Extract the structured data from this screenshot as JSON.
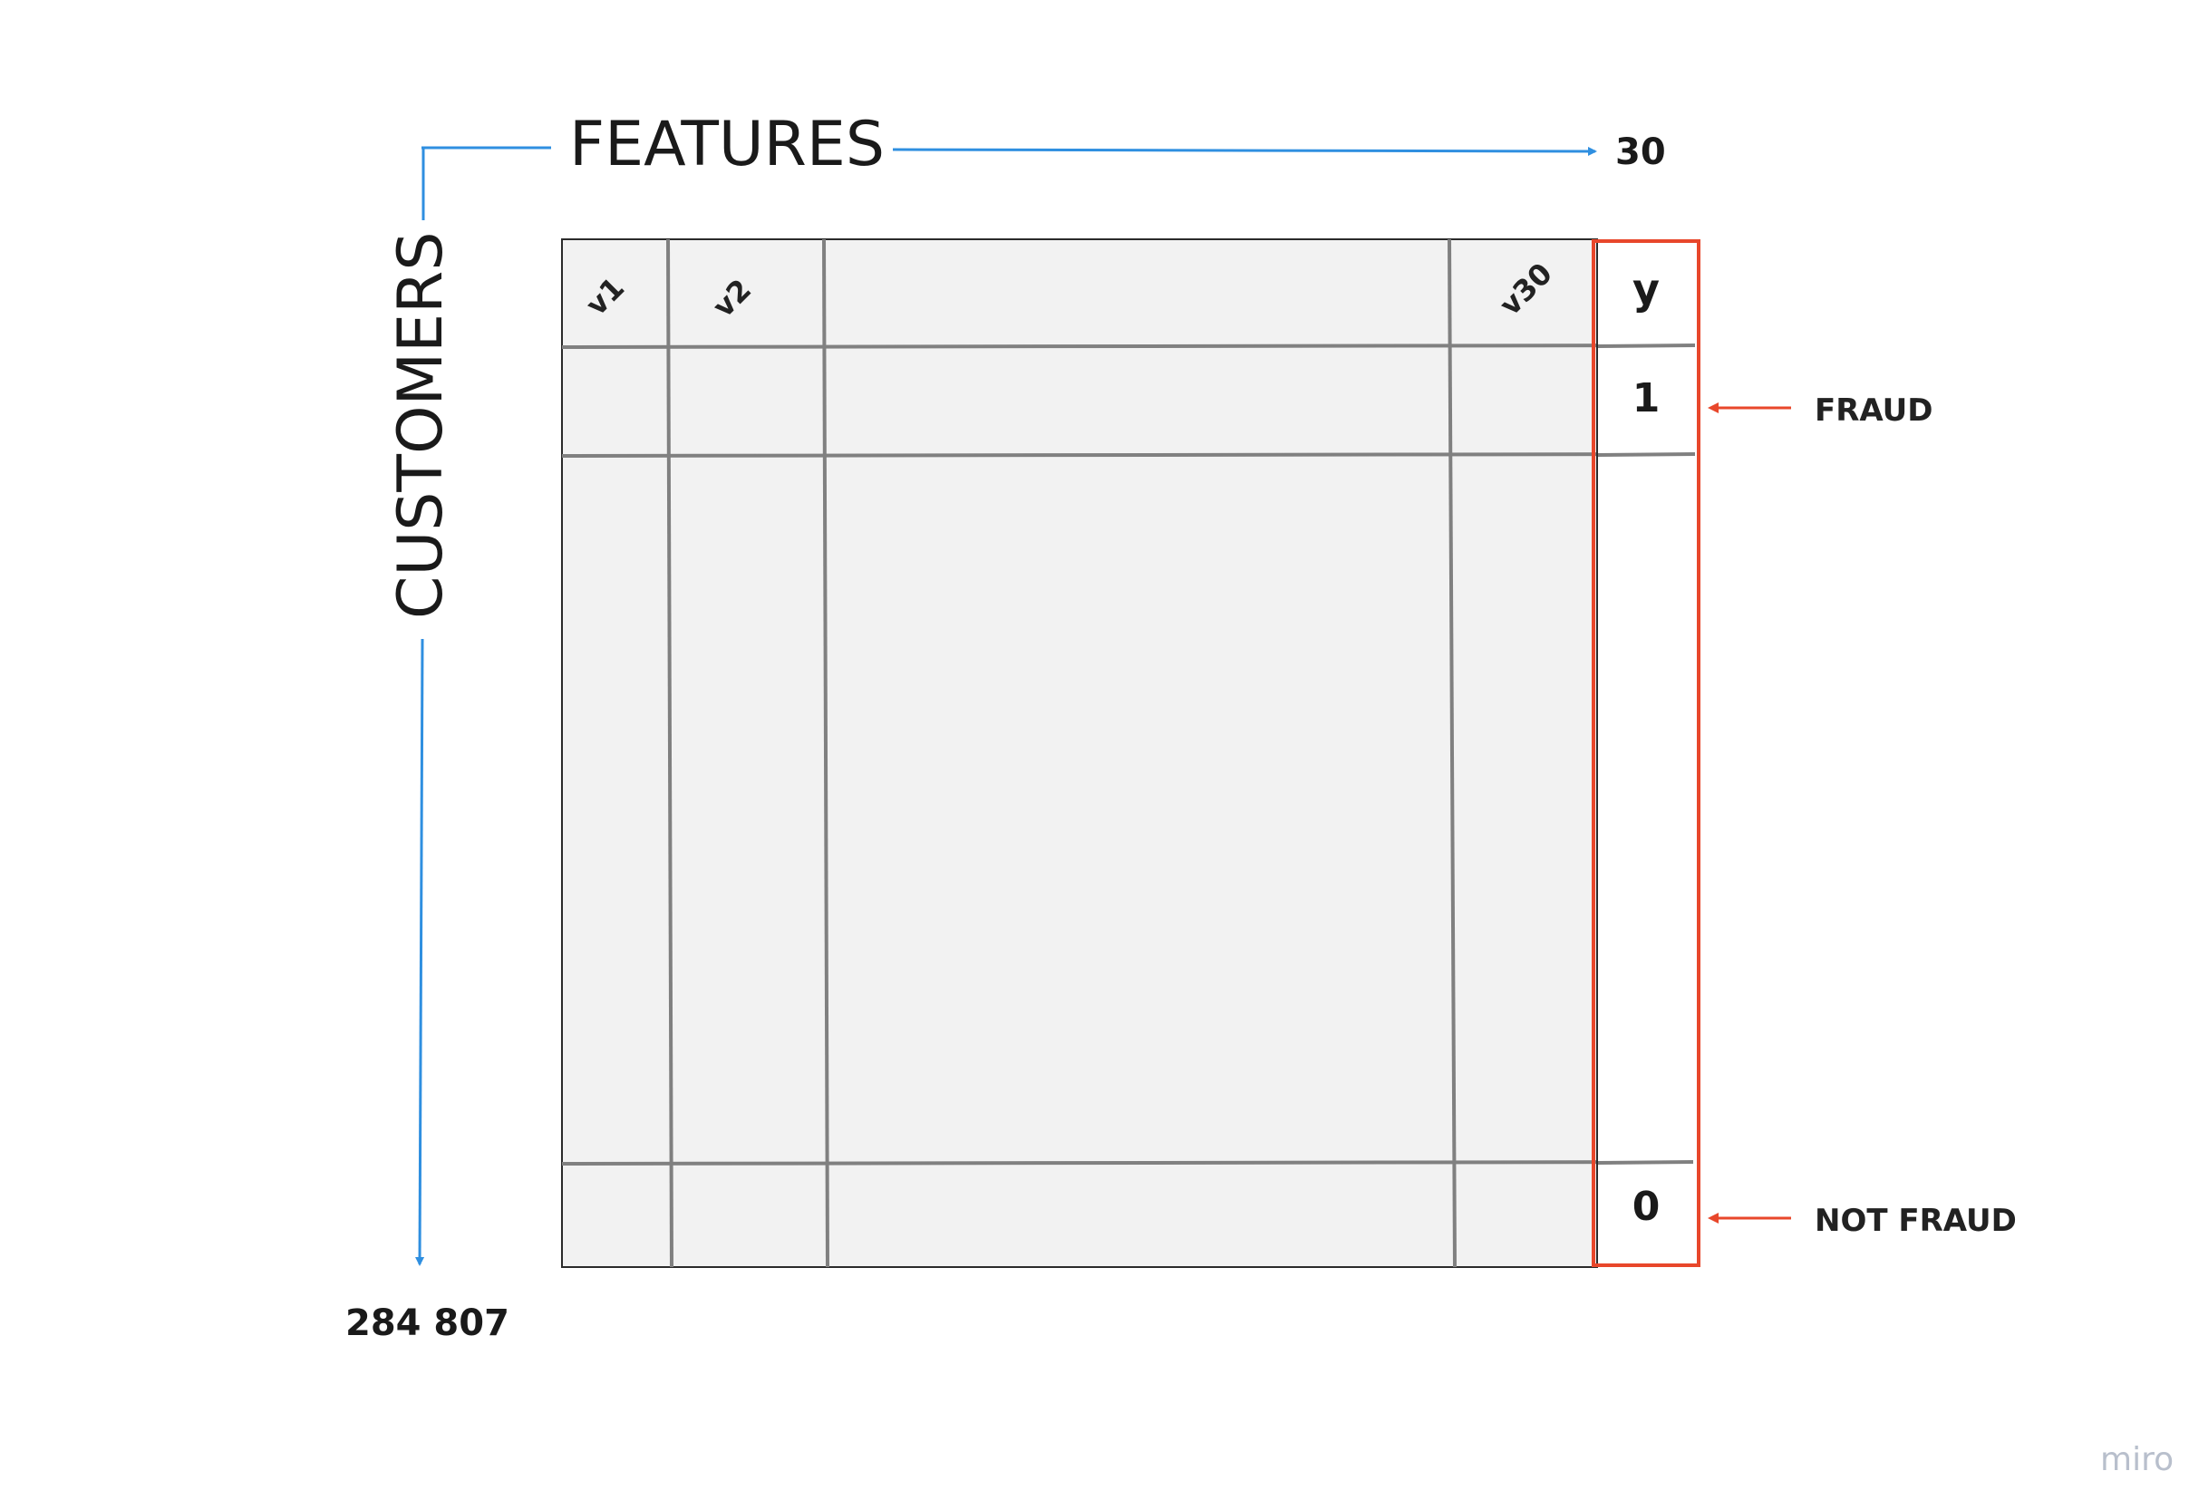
{
  "axes": {
    "features_label": "FEATURES",
    "features_count": "30",
    "customers_label": "CUSTOMERS",
    "customers_count": "284 807"
  },
  "matrix": {
    "column_headers": [
      "v1",
      "v2",
      "v30"
    ],
    "target_header": "y",
    "target_values": [
      "1",
      "0"
    ]
  },
  "annotations": {
    "fraud_label": "FRAUD",
    "not_fraud_label": "NOT FRAUD"
  },
  "watermark": "miro",
  "colors": {
    "axis_arrow": "#2f8fe0",
    "highlight": "#e8472b",
    "matrix_fill": "#f2f2f2",
    "grid_line": "#808080"
  }
}
